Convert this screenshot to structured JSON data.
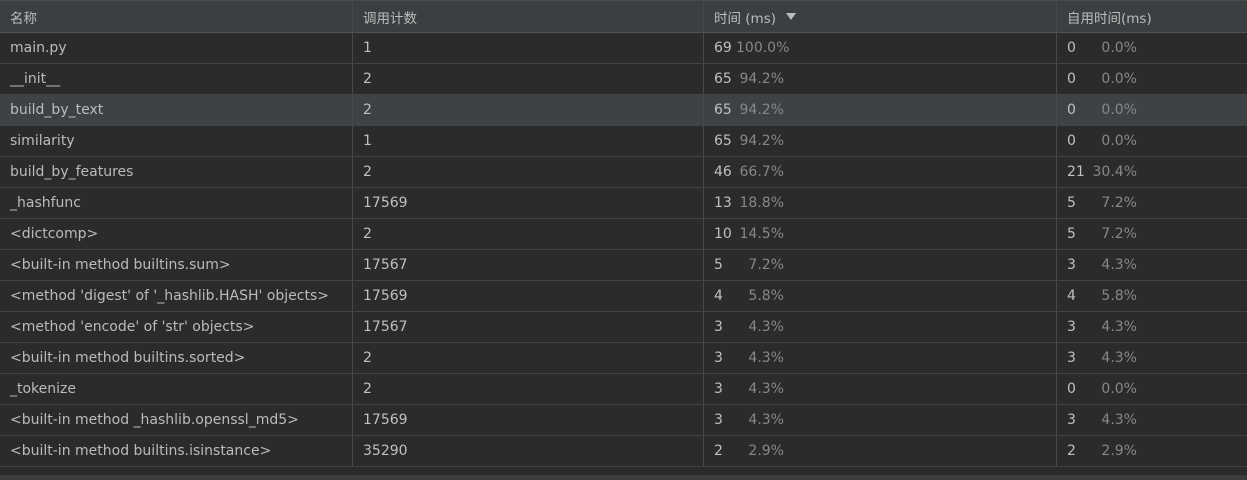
{
  "columns": {
    "name": "名称",
    "calls": "调用计数",
    "time": "时间 (ms)",
    "own_time": "自用时间(ms)"
  },
  "sort": {
    "column": "time",
    "direction": "descending",
    "icon": "sort-down-icon"
  },
  "rows": [
    {
      "name": "main.py",
      "calls": "1",
      "time": "69",
      "time_pct": "100.0%",
      "own": "0",
      "own_pct": "0.0%"
    },
    {
      "name": "__init__",
      "calls": "2",
      "time": "65",
      "time_pct": "94.2%",
      "own": "0",
      "own_pct": "0.0%"
    },
    {
      "name": "build_by_text",
      "calls": "2",
      "time": "65",
      "time_pct": "94.2%",
      "own": "0",
      "own_pct": "0.0%"
    },
    {
      "name": "similarity",
      "calls": "1",
      "time": "65",
      "time_pct": "94.2%",
      "own": "0",
      "own_pct": "0.0%"
    },
    {
      "name": "build_by_features",
      "calls": "2",
      "time": "46",
      "time_pct": "66.7%",
      "own": "21",
      "own_pct": "30.4%"
    },
    {
      "name": "_hashfunc",
      "calls": "17569",
      "time": "13",
      "time_pct": "18.8%",
      "own": "5",
      "own_pct": "7.2%"
    },
    {
      "name": "<dictcomp>",
      "calls": "2",
      "time": "10",
      "time_pct": "14.5%",
      "own": "5",
      "own_pct": "7.2%"
    },
    {
      "name": "<built-in method builtins.sum>",
      "calls": "17567",
      "time": "5",
      "time_pct": "7.2%",
      "own": "3",
      "own_pct": "4.3%"
    },
    {
      "name": "<method 'digest' of '_hashlib.HASH' objects>",
      "calls": "17569",
      "time": "4",
      "time_pct": "5.8%",
      "own": "4",
      "own_pct": "5.8%"
    },
    {
      "name": "<method 'encode' of 'str' objects>",
      "calls": "17567",
      "time": "3",
      "time_pct": "4.3%",
      "own": "3",
      "own_pct": "4.3%"
    },
    {
      "name": "<built-in method builtins.sorted>",
      "calls": "2",
      "time": "3",
      "time_pct": "4.3%",
      "own": "3",
      "own_pct": "4.3%"
    },
    {
      "name": "_tokenize",
      "calls": "2",
      "time": "3",
      "time_pct": "4.3%",
      "own": "0",
      "own_pct": "0.0%"
    },
    {
      "name": "<built-in method _hashlib.openssl_md5>",
      "calls": "17569",
      "time": "3",
      "time_pct": "4.3%",
      "own": "3",
      "own_pct": "4.3%"
    },
    {
      "name": "<built-in method builtins.isinstance>",
      "calls": "35290",
      "time": "2",
      "time_pct": "2.9%",
      "own": "2",
      "own_pct": "2.9%"
    }
  ],
  "selected_row_index": 2
}
